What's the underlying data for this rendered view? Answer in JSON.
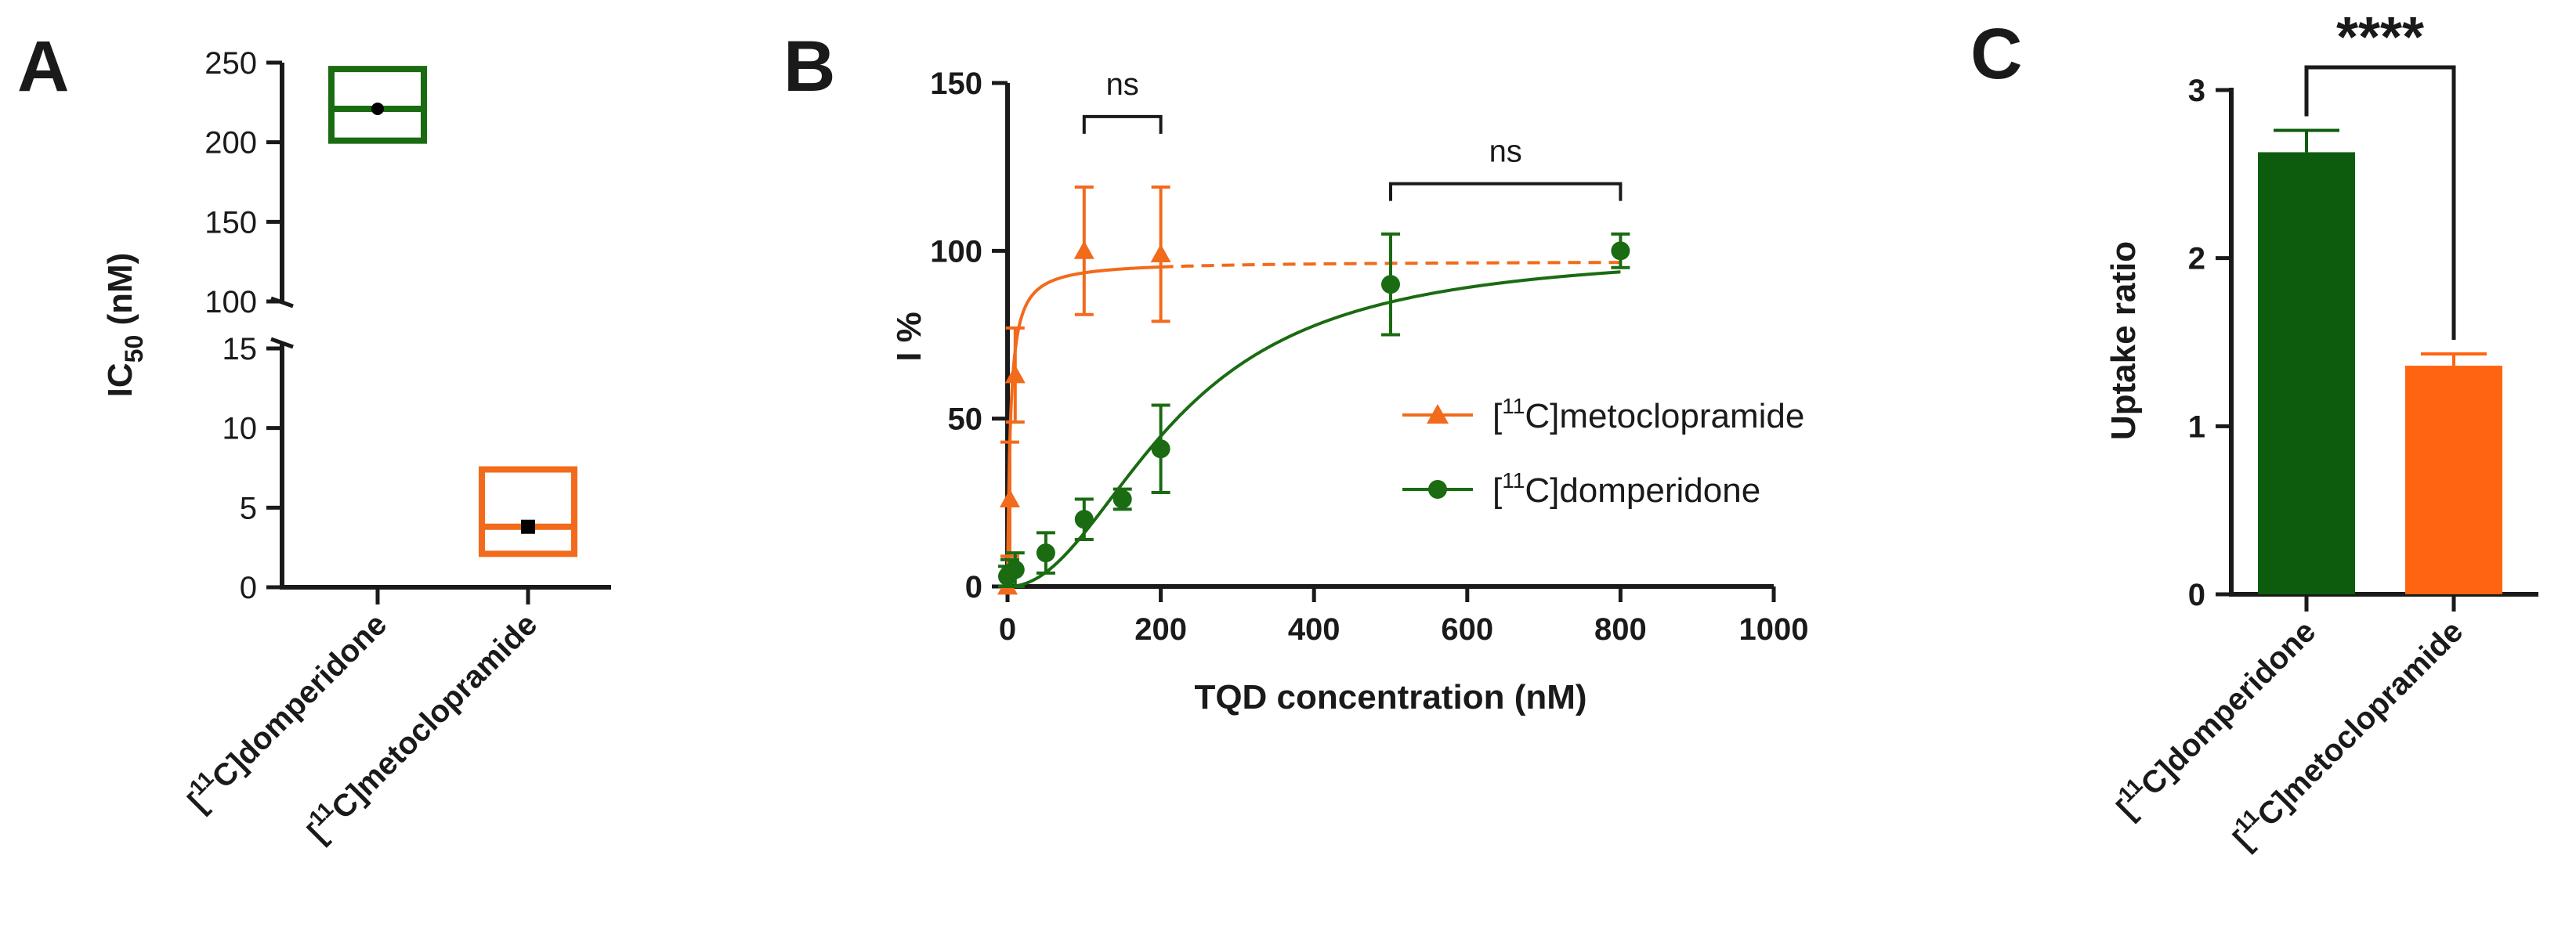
{
  "chart_data": [
    {
      "id": "A",
      "panel_label": "A",
      "type": "box",
      "ylabel_main": "IC",
      "ylabel_sub": "50",
      "ylabel_unit": " (nM)",
      "y_axis_break": true,
      "ylim_lower": [
        0,
        15
      ],
      "ylim_upper": [
        100,
        250
      ],
      "yticks_lower": [
        "0",
        "5",
        "10",
        "15"
      ],
      "yticks_upper": [
        "100",
        "150",
        "200",
        "250"
      ],
      "categories": [
        {
          "pre": "[",
          "sup": "11",
          "post": "C]domperidone"
        },
        {
          "pre": "[",
          "sup": "11",
          "post": "C]metoclopramide"
        }
      ],
      "boxes": [
        {
          "name": "[11C]domperidone",
          "color": "#1a6b12",
          "low": 201,
          "high": 246,
          "median": 221,
          "mean": 221,
          "marker": "circle"
        },
        {
          "name": "[11C]metoclopramide",
          "color": "#f26a1b",
          "low": 2.1,
          "high": 7.4,
          "median": 3.8,
          "mean": 3.8,
          "marker": "square"
        }
      ]
    },
    {
      "id": "B",
      "panel_label": "B",
      "type": "scatter",
      "xlabel": "TQD concentration (nM)",
      "ylabel": "I %",
      "xlim": [
        0,
        1000
      ],
      "ylim": [
        0,
        150
      ],
      "xticks": [
        "0",
        "200",
        "400",
        "600",
        "800",
        "1000"
      ],
      "yticks": [
        "0",
        "50",
        "100",
        "150"
      ],
      "series": [
        {
          "name": "[11C]metoclopramide",
          "legend_pre": "[",
          "legend_sup": "11",
          "legend_post": "C]metoclopramide",
          "color": "#f26a1b",
          "marker": "triangle",
          "ic50": 3.8,
          "top": 97,
          "hill": 1.0,
          "fit_dashed_from": 200,
          "points": [
            {
              "x": 0,
              "y": 0,
              "err": 0
            },
            {
              "x": 3,
              "y": 26,
              "err": 17
            },
            {
              "x": 10,
              "y": 63,
              "err": 14
            },
            {
              "x": 100,
              "y": 100,
              "err": 19
            },
            {
              "x": 200,
              "y": 99,
              "err": 20
            }
          ]
        },
        {
          "name": "[11C]domperidone",
          "legend_pre": "[",
          "legend_sup": "11",
          "legend_post": "C]domperidone",
          "color": "#1a6b12",
          "marker": "circle",
          "ic50": 221,
          "top": 100,
          "hill": 2.1,
          "points": [
            {
              "x": 0,
              "y": 3,
              "err": 3
            },
            {
              "x": 3,
              "y": 4,
              "err": 4
            },
            {
              "x": 10,
              "y": 5,
              "err": 5
            },
            {
              "x": 50,
              "y": 10,
              "err": 6
            },
            {
              "x": 100,
              "y": 20,
              "err": 6
            },
            {
              "x": 150,
              "y": 26,
              "err": 3
            },
            {
              "x": 200,
              "y": 41,
              "err": 13
            },
            {
              "x": 500,
              "y": 90,
              "err": 15
            },
            {
              "x": 800,
              "y": 100,
              "err": 5
            }
          ]
        }
      ],
      "annotations": [
        {
          "text": "ns",
          "x1": 100,
          "x2": 200,
          "y": 140
        },
        {
          "text": "ns",
          "x1": 500,
          "x2": 800,
          "y": 120
        }
      ]
    },
    {
      "id": "C",
      "panel_label": "C",
      "type": "bar",
      "ylabel": "Uptake ratio",
      "ylim": [
        0,
        3
      ],
      "yticks": [
        "0",
        "1",
        "2",
        "3"
      ],
      "categories": [
        {
          "pre": "[",
          "sup": "11",
          "post": "C]domperidone"
        },
        {
          "pre": "[",
          "sup": "11",
          "post": "C]metoclopramide"
        }
      ],
      "values": [
        2.63,
        1.36
      ],
      "errors": [
        0.13,
        0.07
      ],
      "colors": [
        "#0d5c0d",
        "#ff6410"
      ],
      "significance": "****"
    }
  ]
}
